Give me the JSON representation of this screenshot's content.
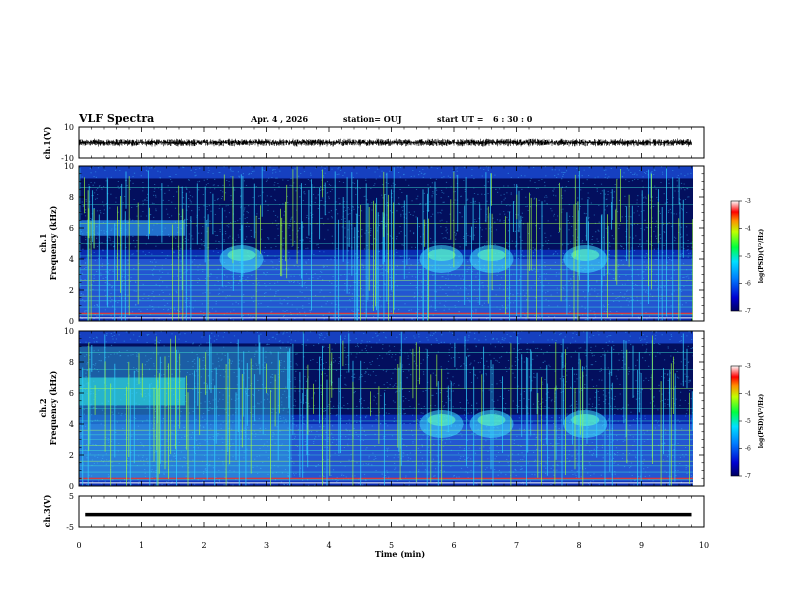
{
  "header": {
    "title": "VLF Spectra",
    "date": "Apr. 4 , 2026",
    "station": "station= OUJ",
    "start_ut": "start UT =",
    "start_time": "6 : 30 : 0"
  },
  "chart_data": [
    {
      "type": "line",
      "panel": "ch1-waveform",
      "ylabel": "ch.1(V)",
      "ylim": [
        -10,
        10
      ],
      "yticks": [
        "10",
        "-10"
      ],
      "description_values": {
        "amplitude_approx_v": 2.5,
        "x_range_min": [
          0,
          9.8
        ]
      }
    },
    {
      "type": "heatmap",
      "panel": "ch1-spectrogram",
      "ylabel": "ch.1\nFrequency (kHz)",
      "ylim": [
        0,
        10
      ],
      "yticks": [
        "0",
        "2",
        "4",
        "6",
        "8",
        "10"
      ],
      "colorbar": {
        "label": "log(PSD)(V²/Hz)",
        "range": [
          -7,
          -3
        ],
        "ticks": [
          "-3",
          "-4",
          "-5",
          "-6",
          "-7"
        ]
      },
      "features": {
        "band_khz": [
          5.5,
          6.5
        ],
        "band_minutes": [
          0,
          1.7
        ],
        "emission_humps_min": [
          2.6,
          5.8,
          6.6,
          8.1
        ],
        "emission_freq_khz": 4
      }
    },
    {
      "type": "heatmap",
      "panel": "ch2-spectrogram",
      "ylabel": "ch.2\nFrequency (kHz)",
      "ylim": [
        0,
        10
      ],
      "yticks": [
        "0",
        "2",
        "4",
        "6",
        "8",
        "10"
      ],
      "colorbar": {
        "label": "log(PSD)(V²/Hz)",
        "range": [
          -7,
          -3
        ],
        "ticks": [
          "-3",
          "-4",
          "-5",
          "-6",
          "-7"
        ]
      },
      "features": {
        "band_khz": [
          5.2,
          7.0
        ],
        "band_minutes": [
          0,
          1.7
        ],
        "noise_end_min": 3.4,
        "emission_humps_min": [
          5.8,
          6.6,
          8.1
        ],
        "emission_freq_khz": 4
      }
    },
    {
      "type": "line",
      "panel": "ch3-waveform",
      "ylabel": "ch.3(V)",
      "ylim": [
        -5,
        5
      ],
      "yticks": [
        "5",
        "-5"
      ],
      "xlabel": "Time (min)",
      "xlim": [
        0,
        10
      ],
      "xticks": [
        "0",
        "1",
        "2",
        "3",
        "4",
        "5",
        "6",
        "7",
        "8",
        "9",
        "10"
      ],
      "values": {
        "constant_v": -1.0,
        "x_range_min": [
          0.1,
          9.8
        ]
      }
    }
  ],
  "colors": {
    "waveform": "#000000",
    "spectrogram_low": "#000030",
    "spectrogram_mid": "#1a3acc",
    "spectrogram_high": "#00ffcc"
  }
}
